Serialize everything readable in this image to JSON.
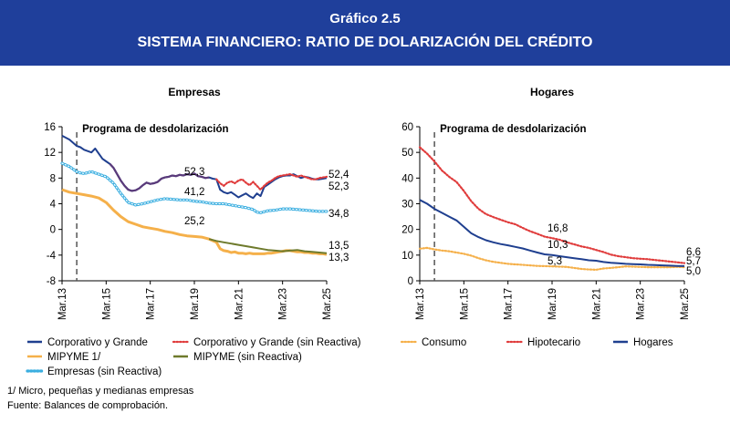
{
  "header": {
    "kicker": "Gráfico 2.5",
    "title": "SISTEMA FINANCIERO: RATIO DE DOLARIZACIÓN DEL CRÉDITO"
  },
  "colors": {
    "banner": "#1f3f9b",
    "navy": "#1f3f8f",
    "red": "#e03c3c",
    "orange": "#f5b04a",
    "olive": "#6e7a2c",
    "lightblue": "#3aaee0",
    "violet": "#5a3a7a"
  },
  "chart_data": [
    {
      "type": "line",
      "title": "Empresas",
      "annotation": "Programa de desdolarización",
      "ylim": [
        -8,
        16
      ],
      "yticks": [
        -8,
        -4,
        0,
        4,
        8,
        12,
        16
      ],
      "xticks": [
        "Mar.13",
        "Mar.15",
        "Mar.17",
        "Mar.19",
        "Mar.21",
        "Mar.23",
        "Mar.25"
      ],
      "series": [
        {
          "name": "Corporativo y Grande",
          "color": "#1f3f8f",
          "style": "solid",
          "x": [
            0,
            4,
            8,
            10,
            12,
            16,
            18,
            20,
            22,
            24,
            26,
            28,
            30,
            32,
            34,
            36,
            38,
            40,
            42,
            44,
            46,
            48,
            50,
            52,
            54,
            56,
            58,
            60,
            62,
            64,
            66,
            68,
            70,
            72,
            74,
            76,
            78,
            80,
            82,
            84,
            86,
            88,
            90,
            92,
            94,
            96,
            98,
            100,
            102,
            104,
            106,
            108,
            110,
            112,
            114,
            116,
            118,
            120,
            122,
            124,
            126,
            128,
            130,
            132,
            134,
            136,
            138,
            140,
            142,
            144
          ],
          "y": [
            14.6,
            14,
            13,
            12.8,
            12.4,
            12,
            12.6,
            11.8,
            11,
            10.6,
            10.2,
            9.6,
            8.6,
            7.6,
            6.8,
            6.2,
            6,
            6.1,
            6.4,
            6.9,
            7.3,
            7.1,
            7.2,
            7.4,
            7.9,
            8.1,
            8.2,
            8.4,
            8.3,
            8.5,
            8.4,
            8.6,
            8.5,
            8.7,
            8.3,
            8.2,
            8.0,
            8.1,
            7.9,
            7.8,
            6.2,
            5.8,
            5.6,
            5.8,
            5.4,
            5.0,
            5.3,
            5.6,
            5.2,
            4.9,
            5.6,
            5.2,
            6.6,
            7.0,
            7.4,
            7.8,
            8.1,
            8.3,
            8.4,
            8.4,
            8.6,
            8.3,
            8.0,
            8.2,
            8.1,
            7.9,
            7.8,
            7.8,
            7.9,
            8.0
          ]
        },
        {
          "name": "Corporativo y Grande (sin Reactiva)",
          "color": "#e03c3c",
          "style": "dotted",
          "x": [
            84,
            86,
            88,
            90,
            92,
            94,
            96,
            98,
            100,
            102,
            104,
            106,
            108,
            110,
            112,
            114,
            116,
            118,
            120,
            122,
            124,
            126,
            128,
            130,
            132,
            134,
            136,
            138,
            140,
            142,
            144
          ],
          "y": [
            7.8,
            7.2,
            6.8,
            7.3,
            7.5,
            7.2,
            7.6,
            7.8,
            7.3,
            6.9,
            7.4,
            6.8,
            6.2,
            6.8,
            7.3,
            7.6,
            8.0,
            8.3,
            8.4,
            8.5,
            8.6,
            8.4,
            8.2,
            8.4,
            8.2,
            8.0,
            7.8,
            7.8,
            8.0,
            8.1,
            8.2
          ]
        },
        {
          "name": "MIPYME 1/",
          "color": "#f5b04a",
          "style": "solid",
          "x": [
            0,
            4,
            8,
            12,
            16,
            20,
            24,
            28,
            32,
            36,
            40,
            44,
            48,
            52,
            56,
            60,
            64,
            68,
            72,
            76,
            80,
            84,
            86,
            88,
            90,
            92,
            94,
            96,
            98,
            100,
            102,
            104,
            106,
            108,
            110,
            112,
            114,
            116,
            118,
            120,
            122,
            124,
            126,
            128,
            130,
            132,
            134,
            136,
            138,
            140,
            142,
            144
          ],
          "y": [
            6.2,
            5.8,
            5.6,
            5.4,
            5.2,
            4.9,
            4.2,
            3.0,
            2.0,
            1.2,
            0.8,
            0.4,
            0.2,
            0.0,
            -0.3,
            -0.5,
            -0.8,
            -1.0,
            -1.1,
            -1.2,
            -1.5,
            -2.0,
            -3.0,
            -3.3,
            -3.4,
            -3.6,
            -3.5,
            -3.7,
            -3.7,
            -3.8,
            -3.7,
            -3.8,
            -3.8,
            -3.8,
            -3.8,
            -3.7,
            -3.7,
            -3.6,
            -3.5,
            -3.4,
            -3.3,
            -3.3,
            -3.4,
            -3.5,
            -3.5,
            -3.6,
            -3.6,
            -3.7,
            -3.7,
            -3.8,
            -3.8,
            -3.9
          ]
        },
        {
          "name": "MIPYME (sin Reactiva)",
          "color": "#6e7a2c",
          "style": "solid",
          "x": [
            80,
            84,
            88,
            92,
            96,
            100,
            104,
            108,
            112,
            116,
            120,
            124,
            128,
            132,
            136,
            140,
            144
          ],
          "y": [
            -1.5,
            -1.8,
            -2.0,
            -2.2,
            -2.4,
            -2.6,
            -2.8,
            -3.0,
            -3.2,
            -3.3,
            -3.4,
            -3.3,
            -3.2,
            -3.4,
            -3.5,
            -3.6,
            -3.7
          ]
        },
        {
          "name": "Empresas (sin Reactiva)",
          "color": "#3aaee0",
          "style": "circles",
          "x": [
            0,
            4,
            8,
            10,
            12,
            16,
            20,
            24,
            28,
            32,
            36,
            40,
            44,
            48,
            52,
            56,
            60,
            64,
            68,
            72,
            76,
            80,
            84,
            88,
            92,
            96,
            100,
            104,
            106,
            108,
            112,
            116,
            120,
            124,
            128,
            132,
            136,
            140,
            144
          ],
          "y": [
            10.3,
            9.8,
            9.0,
            8.8,
            8.7,
            9.0,
            8.6,
            8.2,
            7.2,
            5.6,
            4.2,
            3.8,
            4.0,
            4.3,
            4.6,
            4.8,
            4.7,
            4.6,
            4.6,
            4.4,
            4.3,
            4.1,
            4.0,
            4.0,
            3.8,
            3.6,
            3.4,
            3.1,
            2.7,
            2.6,
            2.9,
            3.0,
            3.2,
            3.2,
            3.1,
            3.0,
            2.9,
            2.8,
            2.8
          ]
        }
      ],
      "labels": [
        "52,3",
        "41,2",
        "25,2",
        "52,4",
        "52,3",
        "34,8",
        "13,5",
        "13,3"
      ],
      "legend": [
        "Corporativo y Grande",
        "Corporativo y Grande (sin Reactiva)",
        "MIPYME 1/",
        "MIPYME (sin Reactiva)",
        "Empresas (sin Reactiva)"
      ]
    },
    {
      "type": "line",
      "title": "Hogares",
      "annotation": "Programa de desdolarización",
      "ylim": [
        0,
        60
      ],
      "yticks": [
        0,
        10,
        20,
        30,
        40,
        50,
        60
      ],
      "xticks": [
        "Mar.13",
        "Mar.15",
        "Mar.17",
        "Mar.19",
        "Mar.21",
        "Mar.23",
        "Mar.25"
      ],
      "series": [
        {
          "name": "Consumo",
          "color": "#f5b04a",
          "style": "dotted",
          "x": [
            0,
            4,
            8,
            12,
            16,
            20,
            24,
            28,
            32,
            36,
            40,
            44,
            48,
            52,
            56,
            60,
            64,
            68,
            72,
            76,
            80,
            84,
            88,
            92,
            96,
            100,
            104,
            108,
            112,
            116,
            120,
            124,
            128,
            132,
            136,
            140,
            144
          ],
          "y": [
            12.5,
            12.8,
            12.2,
            11.8,
            11.5,
            11.0,
            10.5,
            9.8,
            8.8,
            8.0,
            7.4,
            7.0,
            6.6,
            6.4,
            6.2,
            6.0,
            5.8,
            5.7,
            5.6,
            5.5,
            5.4,
            5.0,
            4.6,
            4.4,
            4.3,
            4.8,
            5.0,
            5.3,
            5.6,
            5.5,
            5.4,
            5.3,
            5.3,
            5.3,
            5.3,
            5.4,
            5.3
          ]
        },
        {
          "name": "Hipotecario",
          "color": "#e03c3c",
          "style": "dotted",
          "x": [
            0,
            4,
            8,
            12,
            16,
            20,
            24,
            28,
            32,
            36,
            40,
            44,
            48,
            52,
            56,
            60,
            64,
            68,
            72,
            76,
            80,
            84,
            88,
            92,
            96,
            100,
            104,
            108,
            112,
            116,
            120,
            124,
            128,
            132,
            136,
            140,
            144
          ],
          "y": [
            52,
            49.5,
            46.5,
            43,
            40.5,
            38.5,
            35,
            31,
            28,
            26,
            24.8,
            23.8,
            22.8,
            22,
            20.6,
            19.3,
            18.3,
            17.2,
            16.6,
            16,
            15,
            14.2,
            13.4,
            12.8,
            12,
            11.2,
            10.2,
            9.6,
            9.2,
            8.8,
            8.6,
            8.4,
            8.1,
            7.8,
            7.5,
            7.2,
            6.9
          ]
        },
        {
          "name": "Hogares",
          "color": "#1f3f8f",
          "style": "solid",
          "x": [
            0,
            4,
            8,
            12,
            16,
            20,
            24,
            28,
            32,
            36,
            40,
            44,
            48,
            52,
            56,
            60,
            64,
            68,
            72,
            76,
            80,
            84,
            88,
            92,
            96,
            100,
            104,
            108,
            112,
            116,
            120,
            124,
            128,
            132,
            136,
            140,
            144
          ],
          "y": [
            31.5,
            30,
            28,
            26.5,
            25,
            23.5,
            21,
            18.5,
            17,
            15.8,
            15,
            14.3,
            13.8,
            13.2,
            12.6,
            11.8,
            11,
            10.3,
            10,
            9.6,
            9.2,
            8.8,
            8.4,
            8.0,
            7.8,
            7.3,
            7.0,
            6.8,
            6.6,
            6.5,
            6.4,
            6.2,
            6.1,
            6.0,
            5.9,
            5.8,
            5.7
          ]
        }
      ],
      "labels": [
        "16,8",
        "10,3",
        "5,3",
        "6,6",
        "5,7",
        "5,0"
      ],
      "legend": [
        "Consumo",
        "Hipotecario",
        "Hogares"
      ]
    }
  ],
  "footnotes": {
    "note1": "1/ Micro, pequeñas y medianas empresas",
    "source": "Fuente: Balances de comprobación."
  }
}
